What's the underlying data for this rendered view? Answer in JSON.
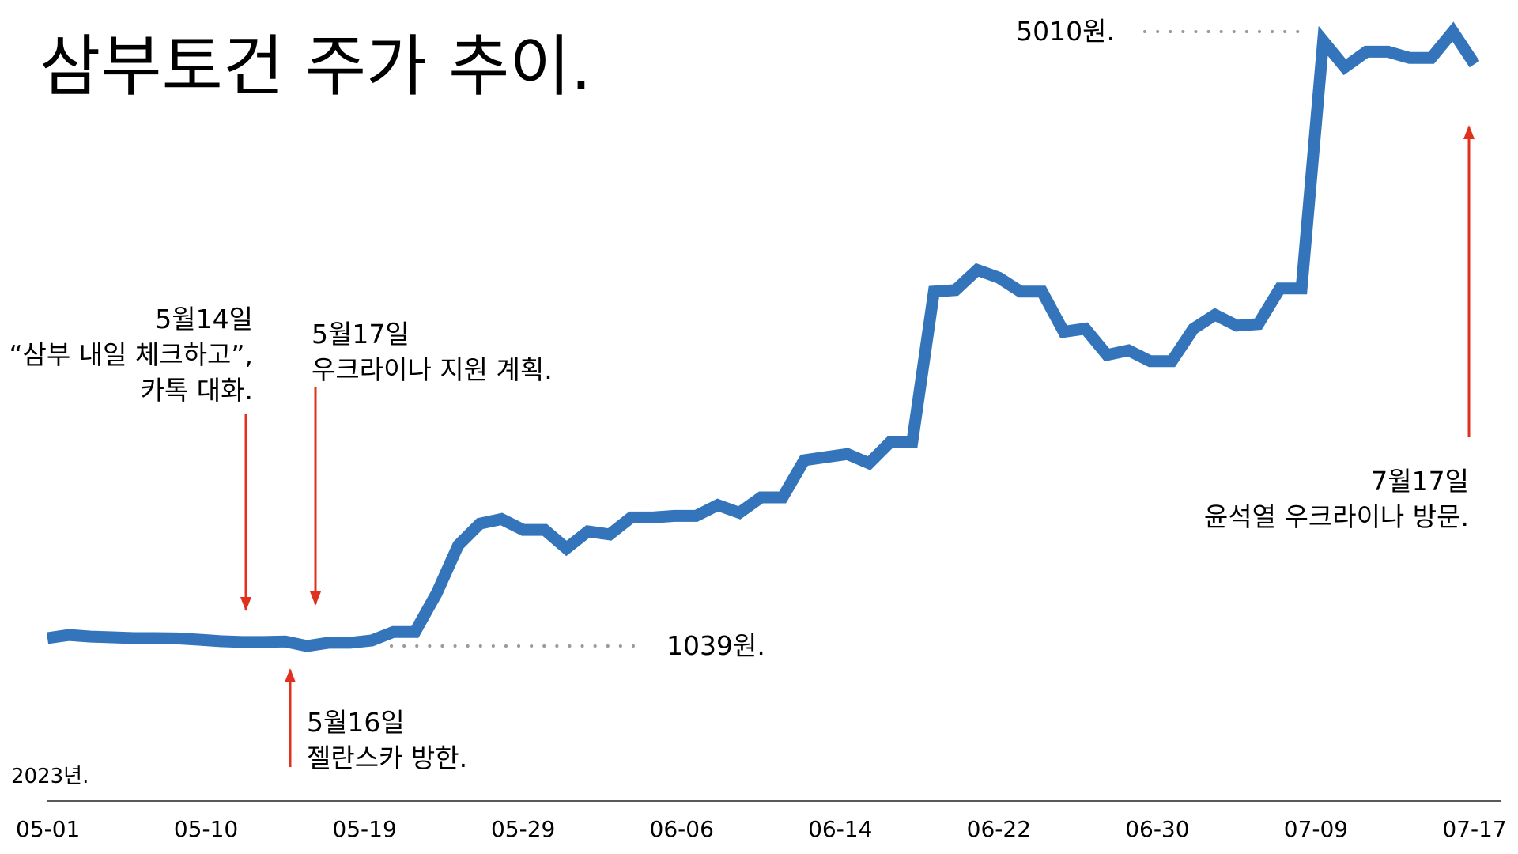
{
  "chart_data": {
    "type": "line",
    "title": "삼부토건 주가 추이.",
    "year_label": "2023년.",
    "x_ticks": [
      "05-01",
      "05-10",
      "05-19",
      "05-29",
      "06-06",
      "06-14",
      "06-22",
      "06-30",
      "07-09",
      "07-17"
    ],
    "series": [
      {
        "color": "#3374bb",
        "values": [
          1090,
          1110,
          1100,
          1095,
          1090,
          1090,
          1088,
          1080,
          1070,
          1065,
          1065,
          1068,
          1039,
          1060,
          1060,
          1075,
          1130,
          1130,
          1380,
          1690,
          1830,
          1860,
          1790,
          1790,
          1670,
          1780,
          1760,
          1870,
          1870,
          1880,
          1880,
          1950,
          1900,
          2000,
          2000,
          2240,
          2260,
          2280,
          2220,
          2360,
          2360,
          3330,
          3340,
          3470,
          3420,
          3330,
          3330,
          3070,
          3090,
          2920,
          2950,
          2880,
          2880,
          3090,
          3180,
          3110,
          3120,
          3350,
          3350,
          4950,
          4780,
          4880,
          4880,
          4840,
          4840,
          5010,
          4800
        ]
      }
    ],
    "reference_lines": [
      {
        "value": 5010,
        "label": "5010원."
      },
      {
        "value": 1039,
        "label": "1039원."
      }
    ],
    "annotations": [
      {
        "date": "05-14",
        "lines": [
          "5월14일",
          "“삼부 내일 체크하고”,",
          "카톡 대화."
        ],
        "color": "#e0301e"
      },
      {
        "date": "05-16",
        "lines": [
          "5월16일",
          "젤란스카 방한."
        ],
        "color": "#e0301e"
      },
      {
        "date": "05-17",
        "lines": [
          "5월17일",
          "우크라이나 지원 계획."
        ],
        "color": "#e0301e"
      },
      {
        "date": "07-17",
        "lines": [
          "7월17일",
          "윤석열 우크라이나 방문."
        ],
        "color": "#e0301e"
      }
    ],
    "grid": false,
    "legend": "none"
  }
}
